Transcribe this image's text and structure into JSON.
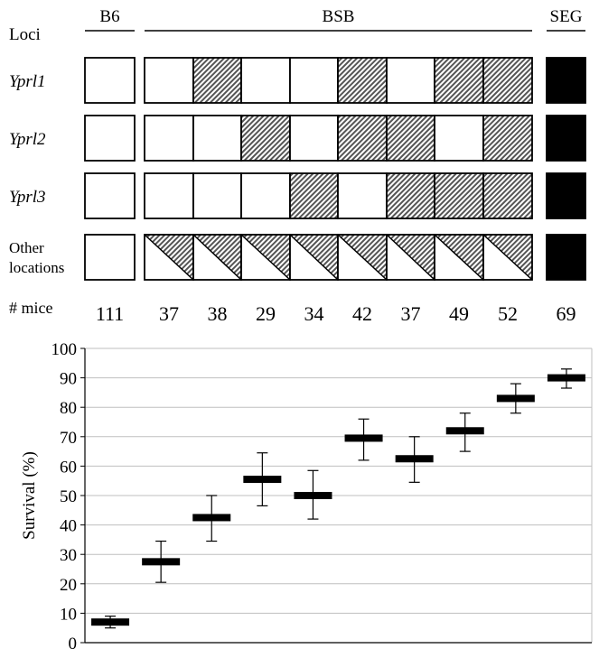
{
  "chart_data": [
    {
      "type": "table",
      "groups": [
        {
          "label": "B6",
          "columns": 1
        },
        {
          "label": "BSB",
          "columns": 8
        },
        {
          "label": "SEG",
          "columns": 1
        }
      ],
      "loci_header": "Loci",
      "row_labels": [
        {
          "text": "Yprl1",
          "italic": true
        },
        {
          "text": "Yprl2",
          "italic": true
        },
        {
          "text": "Yprl3",
          "italic": true
        },
        {
          "text": "Other",
          "text2": "locations",
          "italic": false
        }
      ],
      "genotypes": [
        [
          "white",
          "white",
          "hatched",
          "white",
          "white",
          "hatched",
          "white",
          "hatched",
          "hatched",
          "black"
        ],
        [
          "white",
          "white",
          "white",
          "hatched",
          "white",
          "hatched",
          "hatched",
          "white",
          "hatched",
          "black"
        ],
        [
          "white",
          "white",
          "white",
          "white",
          "hatched",
          "white",
          "hatched",
          "hatched",
          "hatched",
          "black"
        ],
        [
          "white",
          "split",
          "split",
          "split",
          "split",
          "split",
          "split",
          "split",
          "split",
          "black"
        ]
      ],
      "mice_label": "# mice",
      "mice_counts": [
        "111",
        "37",
        "38",
        "29",
        "34",
        "42",
        "37",
        "49",
        "52",
        "69"
      ]
    },
    {
      "type": "scatter",
      "ylabel": "Survival (%)",
      "xlabel": "",
      "ylim": [
        0,
        100
      ],
      "yticks": [
        0,
        10,
        20,
        30,
        40,
        50,
        60,
        70,
        80,
        90,
        100
      ],
      "grid": true,
      "points": [
        {
          "value": 7,
          "low": 5,
          "high": 9
        },
        {
          "value": 27.5,
          "low": 20.5,
          "high": 34.5
        },
        {
          "value": 42.5,
          "low": 34.5,
          "high": 50
        },
        {
          "value": 55.5,
          "low": 46.5,
          "high": 64.5
        },
        {
          "value": 50,
          "low": 42,
          "high": 58.5
        },
        {
          "value": 69.5,
          "low": 62,
          "high": 76
        },
        {
          "value": 62.5,
          "low": 54.5,
          "high": 70
        },
        {
          "value": 72,
          "low": 65,
          "high": 78
        },
        {
          "value": 83,
          "low": 78,
          "high": 88
        },
        {
          "value": 90,
          "low": 86.5,
          "high": 93
        }
      ]
    }
  ],
  "colors": {
    "hatched_stripe": "#555555",
    "solid": "#000000",
    "gridline": "#bfbfbf"
  }
}
